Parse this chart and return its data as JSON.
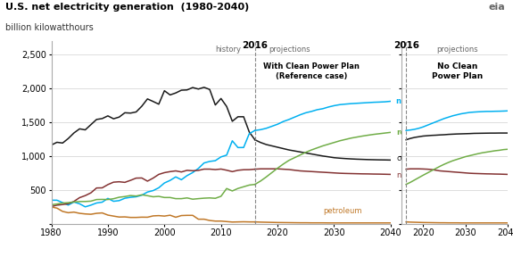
{
  "title": "U.S. net electricity generation  (1980-2040)",
  "ylabel": "billion kilowatthours",
  "ylim": [
    0,
    2700
  ],
  "yticks": [
    0,
    500,
    1000,
    1500,
    2000,
    2500
  ],
  "ytick_labels": [
    "",
    "500",
    "1,000",
    "1,500",
    "2,000",
    "2,500"
  ],
  "split_year": 2016,
  "colors": {
    "coal": "#1a1a1a",
    "natural_gas": "#00b0f0",
    "renewables": "#70ad47",
    "nuclear": "#833232",
    "petroleum": "#c07828"
  },
  "history_years": [
    1980,
    1981,
    1982,
    1983,
    1984,
    1985,
    1986,
    1987,
    1988,
    1989,
    1990,
    1991,
    1992,
    1993,
    1994,
    1995,
    1996,
    1997,
    1998,
    1999,
    2000,
    2001,
    2002,
    2003,
    2004,
    2005,
    2006,
    2007,
    2008,
    2009,
    2010,
    2011,
    2012,
    2013,
    2014,
    2015,
    2016
  ],
  "coal_hist": [
    1162,
    1203,
    1192,
    1259,
    1341,
    1402,
    1387,
    1464,
    1541,
    1554,
    1594,
    1551,
    1576,
    1640,
    1635,
    1652,
    1737,
    1845,
    1807,
    1767,
    1966,
    1904,
    1933,
    1974,
    1978,
    2013,
    1991,
    2016,
    1985,
    1755,
    1851,
    1733,
    1514,
    1581,
    1581,
    1355,
    1240
  ],
  "gas_hist": [
    346,
    346,
    310,
    274,
    319,
    293,
    248,
    273,
    305,
    317,
    373,
    330,
    340,
    375,
    389,
    397,
    420,
    467,
    488,
    530,
    601,
    639,
    691,
    649,
    710,
    755,
    816,
    897,
    920,
    931,
    987,
    1013,
    1225,
    1125,
    1126,
    1331,
    1378
  ],
  "nuclear_hist": [
    251,
    273,
    282,
    294,
    328,
    384,
    414,
    455,
    527,
    529,
    577,
    613,
    619,
    610,
    640,
    673,
    675,
    628,
    673,
    728,
    754,
    769,
    780,
    764,
    788,
    782,
    787,
    806,
    806,
    799,
    807,
    790,
    769,
    789,
    797,
    798,
    805
  ],
  "renewables_hist": [
    279,
    290,
    304,
    310,
    320,
    326,
    327,
    332,
    356,
    358,
    356,
    368,
    390,
    400,
    415,
    408,
    426,
    413,
    397,
    403,
    386,
    386,
    369,
    369,
    380,
    361,
    369,
    376,
    380,
    374,
    404,
    519,
    483,
    520,
    545,
    570,
    580
  ],
  "petroleum_hist": [
    246,
    229,
    180,
    161,
    170,
    152,
    143,
    138,
    152,
    158,
    126,
    111,
    97,
    99,
    91,
    91,
    95,
    94,
    114,
    118,
    111,
    124,
    94,
    119,
    122,
    122,
    65,
    65,
    46,
    37,
    37,
    30,
    23,
    25,
    27,
    25,
    25
  ],
  "proj_years_cpp": [
    2016,
    2017,
    2018,
    2019,
    2020,
    2021,
    2022,
    2023,
    2024,
    2025,
    2026,
    2027,
    2028,
    2029,
    2030,
    2031,
    2032,
    2033,
    2034,
    2035,
    2036,
    2037,
    2038,
    2039,
    2040
  ],
  "coal_cpp": [
    1240,
    1200,
    1170,
    1150,
    1130,
    1110,
    1090,
    1075,
    1060,
    1045,
    1030,
    1015,
    1000,
    988,
    975,
    968,
    962,
    957,
    953,
    950,
    947,
    945,
    943,
    942,
    940
  ],
  "gas_cpp": [
    1378,
    1390,
    1410,
    1440,
    1470,
    1510,
    1540,
    1575,
    1610,
    1640,
    1660,
    1685,
    1700,
    1725,
    1745,
    1760,
    1768,
    1775,
    1780,
    1785,
    1790,
    1795,
    1798,
    1802,
    1810
  ],
  "nuclear_cpp": [
    805,
    810,
    810,
    810,
    810,
    805,
    800,
    790,
    780,
    775,
    770,
    765,
    760,
    755,
    750,
    745,
    742,
    740,
    738,
    736,
    735,
    733,
    732,
    730,
    728
  ],
  "renewables_cpp": [
    580,
    630,
    690,
    755,
    820,
    880,
    935,
    975,
    1015,
    1055,
    1090,
    1120,
    1150,
    1175,
    1200,
    1225,
    1245,
    1265,
    1280,
    1295,
    1308,
    1320,
    1330,
    1340,
    1350
  ],
  "petroleum_cpp": [
    25,
    22,
    20,
    18,
    16,
    15,
    14,
    13,
    12,
    12,
    11,
    11,
    11,
    10,
    10,
    10,
    10,
    10,
    10,
    10,
    10,
    10,
    10,
    10,
    10
  ],
  "proj_years_ncpp": [
    2016,
    2017,
    2018,
    2019,
    2020,
    2021,
    2022,
    2023,
    2024,
    2025,
    2026,
    2027,
    2028,
    2029,
    2030,
    2031,
    2032,
    2033,
    2034,
    2035,
    2036,
    2037,
    2038,
    2039,
    2040
  ],
  "coal_ncpp": [
    1240,
    1260,
    1275,
    1285,
    1295,
    1300,
    1305,
    1308,
    1312,
    1315,
    1320,
    1323,
    1326,
    1328,
    1330,
    1332,
    1335,
    1336,
    1337,
    1338,
    1339,
    1339,
    1340,
    1340,
    1340
  ],
  "gas_ncpp": [
    1378,
    1385,
    1395,
    1410,
    1430,
    1455,
    1480,
    1505,
    1530,
    1555,
    1575,
    1595,
    1610,
    1625,
    1635,
    1645,
    1650,
    1654,
    1657,
    1660,
    1660,
    1662,
    1663,
    1665,
    1668
  ],
  "nuclear_ncpp": [
    805,
    810,
    810,
    810,
    808,
    805,
    800,
    790,
    780,
    775,
    770,
    765,
    760,
    755,
    750,
    745,
    742,
    740,
    738,
    736,
    735,
    733,
    732,
    730,
    728
  ],
  "renewables_ncpp": [
    580,
    610,
    645,
    680,
    715,
    748,
    782,
    815,
    848,
    878,
    905,
    930,
    950,
    970,
    990,
    1005,
    1020,
    1035,
    1048,
    1058,
    1068,
    1078,
    1085,
    1095,
    1100
  ],
  "petroleum_ncpp": [
    25,
    22,
    20,
    18,
    16,
    15,
    14,
    13,
    12,
    12,
    11,
    11,
    11,
    10,
    10,
    10,
    10,
    10,
    10,
    10,
    10,
    10,
    10,
    10,
    10
  ],
  "bg_color": "#ffffff",
  "grid_color": "#d0d0d0"
}
